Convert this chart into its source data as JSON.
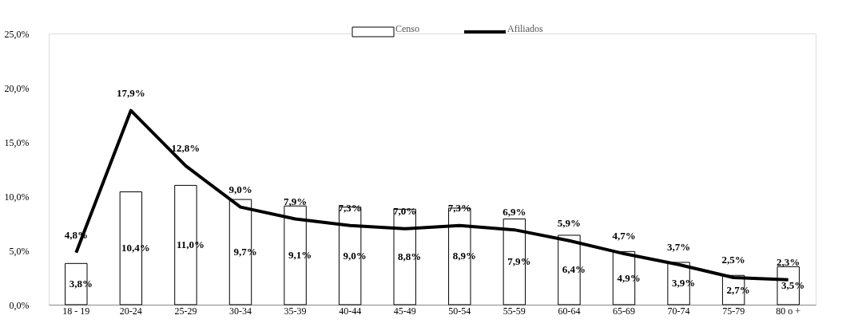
{
  "chart_data": {
    "type": "bar",
    "categories": [
      "18 - 19",
      "20-24",
      "25-29",
      "30-34",
      "35-39",
      "40-44",
      "45-49",
      "50-54",
      "55-59",
      "60-64",
      "65-69",
      "70-74",
      "75-79",
      "80 o +"
    ],
    "series": [
      {
        "name": "Censo",
        "color": "#ffffff",
        "values": [
          3.8,
          10.4,
          11.0,
          9.7,
          9.1,
          9.0,
          8.8,
          8.9,
          7.9,
          6.4,
          4.9,
          3.9,
          2.7,
          3.5
        ],
        "value_labels": [
          "3,8%",
          "10,4%",
          "11,0%",
          "9,7%",
          "9,1%",
          "9,0%",
          "8,8%",
          "8,9%",
          "7,9%",
          "6,4%",
          "4,9%",
          "3,9%",
          "2,7%",
          "3,5%"
        ]
      },
      {
        "name": "Afiliados",
        "type": "line",
        "color": "#000000",
        "values": [
          4.8,
          17.9,
          12.8,
          9.0,
          7.9,
          7.3,
          7.0,
          7.3,
          6.9,
          5.9,
          4.7,
          3.7,
          2.5,
          2.3
        ],
        "value_labels": [
          "4,8%",
          "17,9%",
          "12,8%",
          "9,0%",
          "7,9%",
          "7,3%",
          "7,0%",
          "7,3%",
          "6,9%",
          "5,9%",
          "4,7%",
          "3,7%",
          "2,5%",
          "2,3%"
        ]
      }
    ],
    "ylim": [
      0,
      25
    ],
    "yticks": [
      {
        "value": 0,
        "label": "0,0%"
      },
      {
        "value": 5,
        "label": "5,0%"
      },
      {
        "value": 10,
        "label": "10,0%"
      },
      {
        "value": 15,
        "label": "15,0%"
      },
      {
        "value": 20,
        "label": "20,0%"
      },
      {
        "value": 25,
        "label": "25,0%"
      }
    ],
    "legend": "top"
  }
}
